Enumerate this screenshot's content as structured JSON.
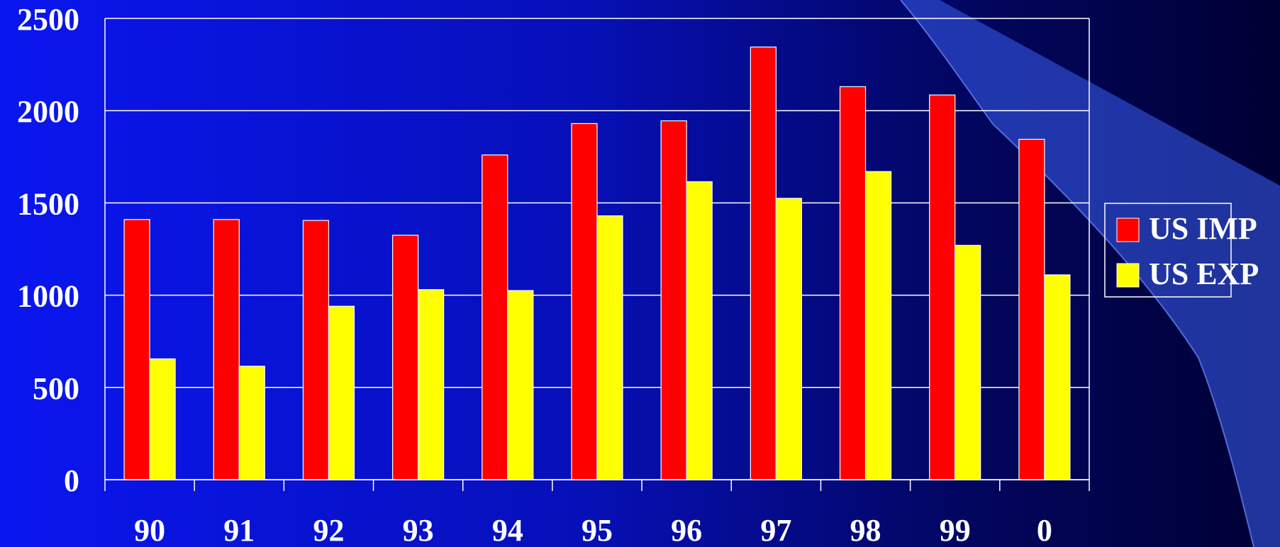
{
  "chart_data": {
    "type": "bar",
    "categories": [
      "90",
      "91",
      "92",
      "93",
      "94",
      "95",
      "96",
      "97",
      "98",
      "99",
      "0"
    ],
    "series": [
      {
        "name": "US IMP",
        "color": "#ff0000",
        "values": [
          1410,
          1410,
          1405,
          1325,
          1760,
          1930,
          1945,
          2345,
          2130,
          2085,
          1845
        ]
      },
      {
        "name": "US EXP",
        "color": "#ffff00",
        "values": [
          655,
          615,
          940,
          1030,
          1025,
          1430,
          1615,
          1525,
          1670,
          1270,
          1110
        ]
      }
    ],
    "y_ticks": [
      "0",
      "500",
      "1000",
      "1500",
      "2000",
      "2500"
    ],
    "ylim": [
      0,
      2500
    ],
    "grid": true,
    "legend_position": "right",
    "title": "",
    "xlabel": "",
    "ylabel": ""
  },
  "colors": {
    "background_left": "#0a16f0",
    "background_right": "#000033",
    "ribbon": "#3a5ef0",
    "gridline": "#ffffff"
  }
}
